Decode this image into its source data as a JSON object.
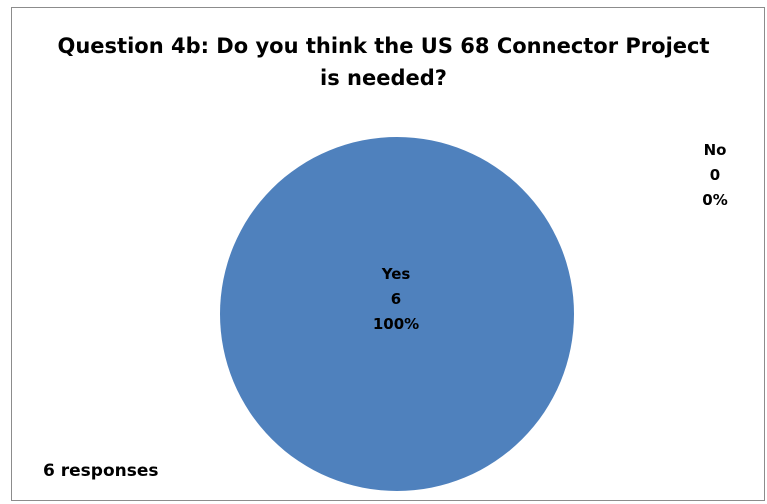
{
  "chart_data": {
    "type": "pie",
    "title": "Question 4b: Do you think the US 68 Connector Project is needed?",
    "title_lines": [
      "Question 4b: Do you think the US 68 Connector Project",
      "is needed?"
    ],
    "slices": [
      {
        "label": "Yes",
        "value": 6,
        "percent": "100%",
        "color": "#4f81bd"
      },
      {
        "label": "No",
        "value": 0,
        "percent": "0%",
        "color": "#c0504d"
      }
    ],
    "footnote": "6 responses"
  }
}
